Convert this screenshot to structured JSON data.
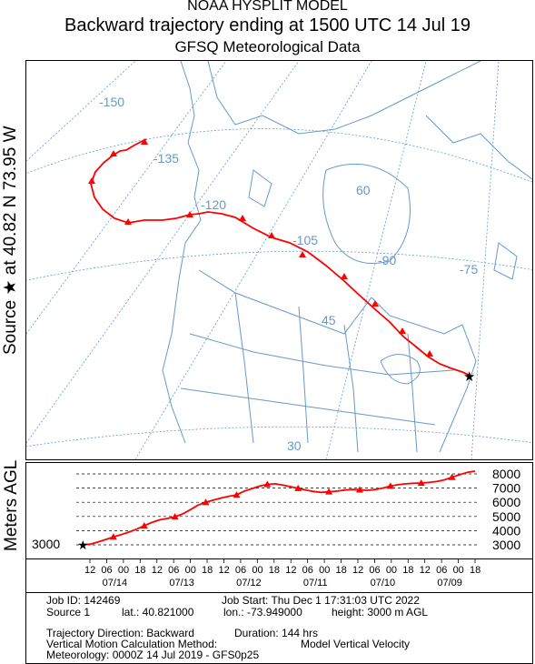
{
  "titles": {
    "line1": "NOAA HYSPLIT MODEL",
    "line2": "Backward trajectory ending at 1500 UTC 14 Jul 19",
    "line3": "GFSQ Meteorological Data"
  },
  "source_label": "Source ★ at  40.82 N  73.95 W",
  "altitude_axis_label": "Meters AGL",
  "map": {
    "longitude_labels": [
      "-150",
      "-135",
      "-120",
      "-105",
      "-90",
      "-75"
    ],
    "latitude_labels": [
      "60",
      "45",
      "30"
    ],
    "colors": {
      "land": "#6699cc",
      "grid": "#6699cc",
      "trajectory": "#ff0000",
      "marker": "#000000"
    }
  },
  "altitude_panel": {
    "y_ticks": [
      "8000",
      "7000",
      "6000",
      "5000",
      "4000",
      "3000"
    ],
    "start_height_label": "3000",
    "profile_m": [
      3000,
      3050,
      3200,
      3380,
      3560,
      3720,
      3900,
      4100,
      4350,
      4580,
      4760,
      4860,
      4980,
      5180,
      5480,
      5800,
      6000,
      6160,
      6300,
      6420,
      6520,
      6780,
      6960,
      7140,
      7260,
      7300,
      7220,
      7100,
      6980,
      6860,
      6760,
      6700,
      6740,
      6780,
      6860,
      6900,
      6880,
      6840,
      6900,
      7000,
      7140,
      7240,
      7300,
      7340,
      7360,
      7400,
      7460,
      7580,
      7760,
      7940,
      8100,
      8200
    ]
  },
  "time_axis": {
    "hour_labels": [
      "12",
      "06",
      "00",
      "18",
      "12",
      "06",
      "00",
      "18",
      "12",
      "06",
      "00",
      "18",
      "12",
      "06",
      "00",
      "18",
      "12",
      "06",
      "00",
      "18",
      "12",
      "06",
      "00",
      "18"
    ],
    "date_labels": [
      "07/14",
      "07/13",
      "07/12",
      "07/11",
      "07/10",
      "07/09"
    ]
  },
  "info": {
    "job_id": "Job ID: 142469",
    "job_start": "Job Start: Thu Dec  1 17:31:03 UTC 2022",
    "source": "Source 1",
    "lat": "lat.: 40.821000",
    "lon": "lon.: -73.949000",
    "height": "height: 3000 m AGL",
    "direction": "Trajectory Direction: Backward",
    "duration": "Duration: 144 hrs",
    "vertical_motion_label": "Vertical Motion Calculation Method:",
    "vertical_motion_value": "Model Vertical Velocity",
    "meteorology": "Meteorology: 0000Z 14 Jul 2019 - GFS0p25"
  }
}
